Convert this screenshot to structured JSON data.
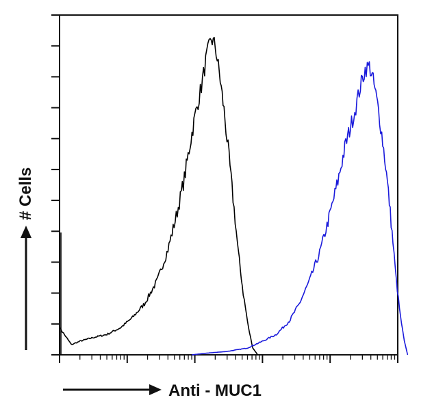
{
  "chart_data": {
    "type": "area",
    "title": "",
    "xlabel": "Anti - MUC1",
    "ylabel": "# Cells",
    "xscale": "log",
    "xlim": [
      1,
      100000
    ],
    "ylim": [
      0,
      100
    ],
    "grid": false,
    "legend": "none",
    "series": [
      {
        "color": "#000000",
        "points": [
          [
            1,
            8
          ],
          [
            1.5,
            3
          ],
          [
            2,
            4
          ],
          [
            3,
            5
          ],
          [
            5,
            6
          ],
          [
            8,
            8
          ],
          [
            12,
            11
          ],
          [
            18,
            15
          ],
          [
            28,
            22
          ],
          [
            40,
            31
          ],
          [
            55,
            42
          ],
          [
            70,
            52
          ],
          [
            85,
            62
          ],
          [
            100,
            70
          ],
          [
            125,
            79
          ],
          [
            150,
            88
          ],
          [
            175,
            93
          ],
          [
            200,
            91
          ],
          [
            230,
            83
          ],
          [
            270,
            72
          ],
          [
            320,
            58
          ],
          [
            380,
            43
          ],
          [
            440,
            30
          ],
          [
            520,
            18
          ],
          [
            620,
            8
          ],
          [
            720,
            2
          ],
          [
            850,
            0
          ]
        ]
      },
      {
        "color": "#1a1adb",
        "points": [
          [
            90,
            0
          ],
          [
            150,
            0.5
          ],
          [
            300,
            1
          ],
          [
            600,
            2
          ],
          [
            1000,
            4
          ],
          [
            1600,
            6
          ],
          [
            2500,
            10
          ],
          [
            3500,
            15
          ],
          [
            5000,
            22
          ],
          [
            7000,
            30
          ],
          [
            9000,
            38
          ],
          [
            11000,
            45
          ],
          [
            13000,
            51
          ],
          [
            15000,
            57
          ],
          [
            17000,
            62
          ],
          [
            20000,
            67
          ],
          [
            24000,
            73
          ],
          [
            28000,
            79
          ],
          [
            33000,
            84
          ],
          [
            38000,
            85
          ],
          [
            42000,
            82
          ],
          [
            46000,
            78
          ],
          [
            52000,
            72
          ],
          [
            58000,
            65
          ],
          [
            66000,
            56
          ],
          [
            75000,
            45
          ],
          [
            85000,
            33
          ],
          [
            95000,
            22
          ],
          [
            110000,
            11
          ],
          [
            125000,
            4
          ],
          [
            140000,
            0
          ]
        ]
      }
    ]
  }
}
